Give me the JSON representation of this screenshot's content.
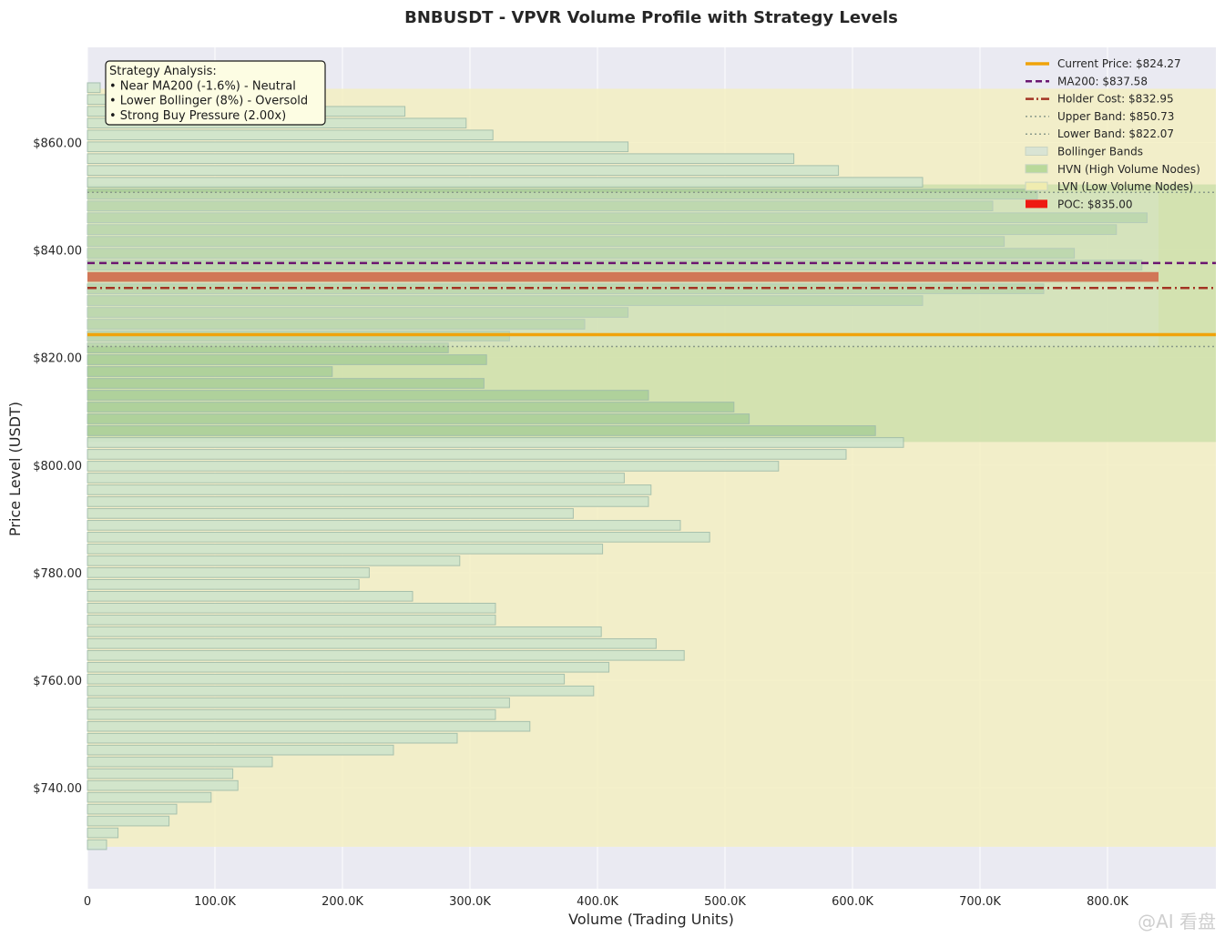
{
  "chart_data": {
    "type": "bar",
    "orientation": "horizontal",
    "title": "BNBUSDT - VPVR Volume Profile with Strategy Levels",
    "xlabel": "Volume (Trading Units)",
    "ylabel": "Price Level (USDT)",
    "xlim": [
      0,
      885000
    ],
    "ylim": [
      721.2,
      877.7
    ],
    "x_ticks": [
      0,
      100000,
      200000,
      300000,
      400000,
      500000,
      600000,
      700000,
      800000
    ],
    "x_tick_labels": [
      "0",
      "100.0K",
      "200.0K",
      "300.0K",
      "400.0K",
      "500.0K",
      "600.0K",
      "700.0K",
      "800.0K"
    ],
    "y_ticks": [
      740,
      760,
      780,
      800,
      820,
      840,
      860
    ],
    "y_tick_labels": [
      "$740.00",
      "$760.00",
      "$780.00",
      "$800.00",
      "$820.00",
      "$840.00",
      "$860.00"
    ],
    "price_levels": [
      729.4,
      731.6,
      733.8,
      736.0,
      738.2,
      740.4,
      742.6,
      744.8,
      747.0,
      749.2,
      751.4,
      753.6,
      755.8,
      758.0,
      760.2,
      762.4,
      764.6,
      766.8,
      769.0,
      771.2,
      773.4,
      775.6,
      777.8,
      780.0,
      782.2,
      784.4,
      786.6,
      788.8,
      791.0,
      793.2,
      795.4,
      797.6,
      799.8,
      802.0,
      804.2,
      806.4,
      808.6,
      810.8,
      813.0,
      815.2,
      817.4,
      819.6,
      821.8,
      824.0,
      826.2,
      828.4,
      830.6,
      832.8,
      835.0,
      837.2,
      839.4,
      841.6,
      843.8,
      846.0,
      848.2,
      850.4,
      852.6,
      854.8,
      857.0,
      859.2,
      861.4,
      863.6,
      865.8,
      868.0,
      870.2
    ],
    "volumes": [
      15000,
      24000,
      64000,
      70000,
      97000,
      118000,
      114000,
      145000,
      240000,
      290000,
      347000,
      320000,
      331000,
      397000,
      374000,
      409000,
      468000,
      446000,
      403000,
      320000,
      320000,
      255000,
      213000,
      221000,
      292000,
      404000,
      488000,
      465000,
      381000,
      440000,
      442000,
      421000,
      542000,
      595000,
      640000,
      618000,
      519000,
      507000,
      440000,
      311000,
      192000,
      313000,
      283000,
      331000,
      390000,
      424000,
      655000,
      750000,
      840000,
      827000,
      774000,
      719000,
      807000,
      831000,
      710000,
      745000,
      655000,
      589000,
      554000,
      424000,
      318000,
      297000,
      249000,
      134000,
      10000
    ],
    "bar_colors": {
      "lvn": "#cde4cc",
      "hvn": "#a9cf98",
      "poc": "#cc3d15",
      "edge": "#9ab8a8"
    },
    "levels": {
      "current_price": 824.27,
      "ma200": 837.58,
      "holder_cost": 832.95,
      "upper_band": 850.73,
      "lower_band": 822.07,
      "poc": 835.0
    },
    "zones": {
      "hvn_range": [
        804.3,
        852.2
      ],
      "lvn_range": [
        729.0,
        870.0
      ],
      "bollinger_range": [
        822.07,
        850.73
      ]
    },
    "legend": [
      {
        "label": "Current Price: $824.27",
        "style": "solid",
        "color": "#f0a30a"
      },
      {
        "label": "MA200: $837.58",
        "style": "dashed",
        "color": "#6b1671"
      },
      {
        "label": "Holder Cost: $832.95",
        "style": "dashdot",
        "color": "#a33424"
      },
      {
        "label": "Upper Band: $850.73",
        "style": "dotted",
        "color": "#8a9a8a"
      },
      {
        "label": "Lower Band: $822.07",
        "style": "dotted",
        "color": "#8a9a8a"
      },
      {
        "label": "Bollinger Bands",
        "style": "patch",
        "color": "#d9e4d4"
      },
      {
        "label": "HVN (High Volume Nodes)",
        "style": "patch",
        "color": "#b9d99a"
      },
      {
        "label": "LVN (Low Volume Nodes)",
        "style": "patch",
        "color": "#f0ecb0"
      },
      {
        "label": "POC: $835.00",
        "style": "patch",
        "color": "#ee1a12"
      }
    ],
    "legend_position": "top-right",
    "grid": true,
    "annotation": {
      "lines": [
        "Strategy Analysis:",
        "• Near MA200 (-1.6%) - Neutral",
        "• Lower Bollinger (8%) - Oversold",
        "• Strong Buy Pressure (2.00x)"
      ]
    }
  },
  "colors": {
    "plot_background": "#eaeaf2",
    "lvn_fill": "#f3efc2",
    "hvn_fill": "#c8dea7",
    "current_price": "#f0a30a",
    "ma200": "#6b1671",
    "holder_cost": "#a33424",
    "band": "#8a9a8a",
    "poc": "#cc3d15"
  },
  "watermark": "@AI 看盘"
}
